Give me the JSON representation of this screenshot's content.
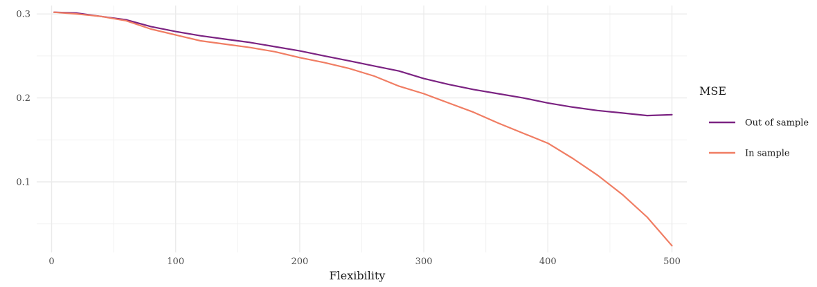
{
  "chart_data": {
    "type": "line",
    "title": "",
    "xlabel": "Flexibility",
    "ylabel": "",
    "xlim": [
      -12,
      512
    ],
    "ylim": [
      0.016,
      0.31
    ],
    "x_ticks": [
      0,
      100,
      200,
      300,
      400,
      500
    ],
    "x_tick_labels": [
      "0",
      "100",
      "200",
      "300",
      "400",
      "500"
    ],
    "y_ticks": [
      0.1,
      0.2,
      0.3
    ],
    "y_tick_labels": [
      "0.1",
      "0.2",
      "0.3"
    ],
    "grid": true,
    "legend": {
      "title": "MSE",
      "position": "right"
    },
    "x": [
      2,
      20,
      40,
      60,
      80,
      100,
      120,
      140,
      160,
      180,
      200,
      220,
      240,
      260,
      280,
      300,
      320,
      340,
      360,
      380,
      400,
      420,
      440,
      460,
      480,
      500
    ],
    "series": [
      {
        "name": "Out of sample",
        "color": "#7b2382",
        "values": [
          0.302,
          0.301,
          0.297,
          0.293,
          0.285,
          0.279,
          0.274,
          0.27,
          0.266,
          0.261,
          0.256,
          0.25,
          0.244,
          0.238,
          0.232,
          0.223,
          0.216,
          0.21,
          0.205,
          0.2,
          0.194,
          0.189,
          0.185,
          0.182,
          0.179,
          0.18
        ]
      },
      {
        "name": "In sample",
        "color": "#f07d63",
        "values": [
          0.302,
          0.3,
          0.297,
          0.292,
          0.282,
          0.275,
          0.268,
          0.264,
          0.26,
          0.255,
          0.248,
          0.242,
          0.235,
          0.226,
          0.214,
          0.205,
          0.194,
          0.183,
          0.17,
          0.158,
          0.146,
          0.128,
          0.108,
          0.085,
          0.058,
          0.024
        ]
      }
    ]
  }
}
